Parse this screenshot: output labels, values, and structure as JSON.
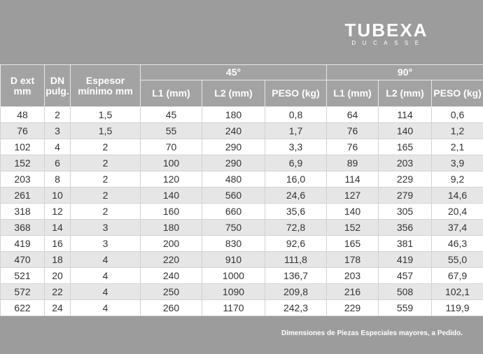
{
  "logo": {
    "main": "TUBEXA",
    "sub": "DUCASSE"
  },
  "table": {
    "headers": {
      "d_ext": "D ext mm",
      "dn": "DN pulg.",
      "espesor": "Espesor mínimo mm",
      "group_45": "45°",
      "group_90": "90°",
      "l1": "L1 (mm)",
      "l2": "L2 (mm)",
      "peso": "PESO (kg)"
    },
    "rows": [
      [
        "48",
        "2",
        "1,5",
        "45",
        "180",
        "0,8",
        "64",
        "114",
        "0,6"
      ],
      [
        "76",
        "3",
        "1,5",
        "55",
        "240",
        "1,7",
        "76",
        "140",
        "1,2"
      ],
      [
        "102",
        "4",
        "2",
        "70",
        "290",
        "3,3",
        "76",
        "165",
        "2,1"
      ],
      [
        "152",
        "6",
        "2",
        "100",
        "290",
        "6,9",
        "89",
        "203",
        "3,9"
      ],
      [
        "203",
        "8",
        "2",
        "120",
        "480",
        "16,0",
        "114",
        "229",
        "9,2"
      ],
      [
        "261",
        "10",
        "2",
        "140",
        "560",
        "24,6",
        "127",
        "279",
        "14,6"
      ],
      [
        "318",
        "12",
        "2",
        "160",
        "660",
        "35,6",
        "140",
        "305",
        "20,4"
      ],
      [
        "368",
        "14",
        "3",
        "180",
        "750",
        "72,8",
        "152",
        "356",
        "37,4"
      ],
      [
        "419",
        "16",
        "3",
        "200",
        "830",
        "92,6",
        "165",
        "381",
        "46,3"
      ],
      [
        "470",
        "18",
        "4",
        "220",
        "910",
        "111,8",
        "178",
        "419",
        "55,0"
      ],
      [
        "521",
        "20",
        "4",
        "240",
        "1000",
        "136,7",
        "203",
        "457",
        "67,9"
      ],
      [
        "572",
        "22",
        "4",
        "250",
        "1090",
        "209,8",
        "216",
        "508",
        "102,1"
      ],
      [
        "622",
        "24",
        "4",
        "260",
        "1170",
        "242,3",
        "229",
        "559",
        "119,9"
      ]
    ]
  },
  "footer": "Dimensiones de Piezas Especiales mayores, a Pedido."
}
